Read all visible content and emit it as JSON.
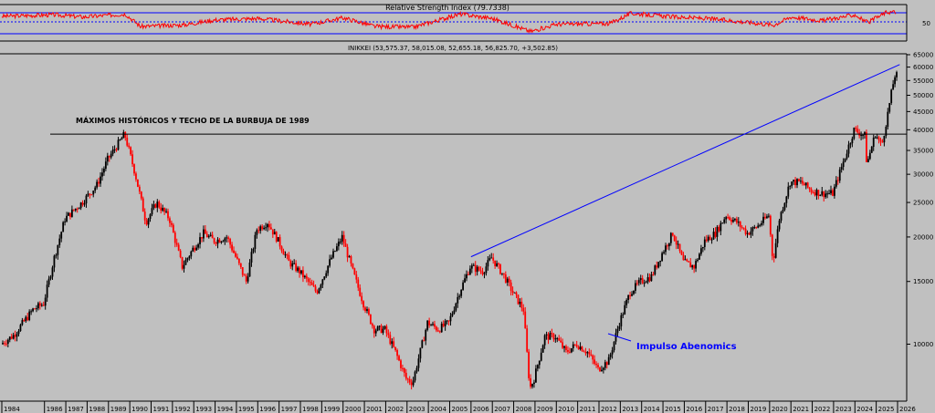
{
  "colors": {
    "background": "#c0c0c0",
    "up_candle": "#000000",
    "down_candle": "#ff0000",
    "rsi_line": "#ff0000",
    "rsi_band": "#0000ff",
    "trendline": "#0000ff",
    "resistance": "#000000",
    "annotation_text": "#0000ff"
  },
  "rsi_panel": {
    "title": "Relative Strength Index (79.7338)",
    "tick_label": "50"
  },
  "price_panel": {
    "title": "INIKKEI (53,575.37, 58,015.08, 52,655.18, 56,825.70, +3,502.85)",
    "resistance_label": "MÁXIMOS HISTÓRICOS Y TECHO DE LA BURBUJA DE 1989",
    "annotation_label": "Impulso Abenomics"
  },
  "chart_data": [
    {
      "type": "line",
      "title": "Relative Strength Index (79.7338)",
      "ylim": [
        0,
        100
      ],
      "reference_lines": [
        30,
        50,
        70
      ],
      "last_value": 79.7338,
      "yticks": [
        50
      ],
      "series": [
        {
          "x": [
            1984.0,
            1986.5,
            1987.8,
            1989.8,
            1990.5,
            1992.5,
            1994.0,
            1996.0,
            1998.5,
            2000.0,
            2001.5,
            2003.3,
            2005.5,
            2007.0,
            2008.8,
            2010.0,
            2012.5,
            2013.5,
            2015.5,
            2017.0,
            2018.5,
            2020.2,
            2021.0,
            2022.5,
            2024.0,
            2024.6,
            2025.5
          ],
          "values": [
            68,
            72,
            66,
            74,
            40,
            44,
            58,
            62,
            46,
            64,
            40,
            38,
            74,
            62,
            26,
            46,
            48,
            76,
            66,
            62,
            54,
            44,
            66,
            56,
            72,
            50,
            79.7
          ]
        }
      ]
    },
    {
      "type": "bar",
      "title": "INIKKEI (53,575.37, 58,015.08, 52,655.18, 56,825.70, +3,502.85)",
      "chart_style": "candlestick",
      "y_scale": "log",
      "ylim": [
        7000,
        65000
      ],
      "yticks": [
        10000,
        15000,
        20000,
        25000,
        30000,
        35000,
        40000,
        45000,
        50000,
        55000,
        60000,
        65000
      ],
      "xticks": [
        "1984",
        "1986",
        "1987",
        "1988",
        "1989",
        "1990",
        "1991",
        "1992",
        "1993",
        "1994",
        "1995",
        "1996",
        "1997",
        "1998",
        "1999",
        "2000",
        "2001",
        "2002",
        "2003",
        "2004",
        "2005",
        "2006",
        "2007",
        "2008",
        "2009",
        "2010",
        "2011",
        "2012",
        "2013",
        "2014",
        "2015",
        "2016",
        "2017",
        "2018",
        "2019",
        "2020",
        "2021",
        "2022",
        "2023",
        "2024",
        "2025",
        "2026"
      ],
      "series": [
        {
          "name": "NIKKEI",
          "x": [
            1984.0,
            1984.6,
            1985.5,
            1986.0,
            1986.5,
            1987.0,
            1987.8,
            1988.5,
            1989.0,
            1989.8,
            1990.3,
            1990.8,
            1991.3,
            1991.9,
            1992.5,
            1993.0,
            1993.5,
            1994.0,
            1994.6,
            1995.5,
            1996.0,
            1996.5,
            1997.0,
            1997.5,
            1998.0,
            1998.8,
            1999.5,
            2000.0,
            2000.5,
            2001.0,
            2001.5,
            2002.0,
            2002.5,
            2003.0,
            2003.3,
            2004.0,
            2004.5,
            2005.0,
            2005.5,
            2006.0,
            2006.6,
            2007.0,
            2007.6,
            2008.0,
            2008.5,
            2008.8,
            2009.0,
            2009.5,
            2010.0,
            2010.5,
            2011.0,
            2011.5,
            2012.0,
            2012.5,
            2013.0,
            2013.5,
            2014.0,
            2014.5,
            2015.0,
            2015.5,
            2016.0,
            2016.5,
            2017.0,
            2017.5,
            2018.0,
            2018.5,
            2019.0,
            2019.5,
            2020.0,
            2020.2,
            2020.5,
            2021.0,
            2021.5,
            2022.0,
            2022.5,
            2023.0,
            2023.5,
            2024.0,
            2024.5,
            2024.6,
            2025.0,
            2025.3,
            2025.6,
            2025.9
          ],
          "values": [
            10000,
            10600,
            12500,
            13000,
            17500,
            22500,
            25000,
            28000,
            33000,
            38900,
            30000,
            22000,
            25000,
            22500,
            16500,
            18500,
            20500,
            19500,
            20000,
            15000,
            21000,
            22000,
            19500,
            17000,
            16000,
            14000,
            17500,
            20000,
            16000,
            13000,
            11000,
            11000,
            9500,
            8000,
            7800,
            11500,
            11000,
            11500,
            14000,
            16500,
            16000,
            17500,
            15500,
            14000,
            12500,
            7500,
            8000,
            10500,
            10500,
            9500,
            10000,
            9500,
            8500,
            9000,
            11500,
            14000,
            15000,
            15500,
            18000,
            20500,
            17000,
            16500,
            19500,
            20500,
            23000,
            22000,
            20500,
            21500,
            23000,
            17000,
            22500,
            28500,
            28500,
            27000,
            26500,
            26500,
            32500,
            40000,
            38500,
            32000,
            39000,
            36000,
            45000,
            56800
          ]
        }
      ],
      "resistance_level": 38900,
      "trendline": {
        "x": [
          2006.0,
          2026.1
        ],
        "values": [
          17600,
          61000
        ]
      },
      "annotations": [
        {
          "text": "MÁXIMOS HISTÓRICOS Y TECHO DE LA BURBUJA DE 1989",
          "x": 1985.5,
          "value": 41500
        },
        {
          "text": "Impulso Abenomics",
          "x": 2013.0,
          "value": 8400
        }
      ]
    }
  ]
}
